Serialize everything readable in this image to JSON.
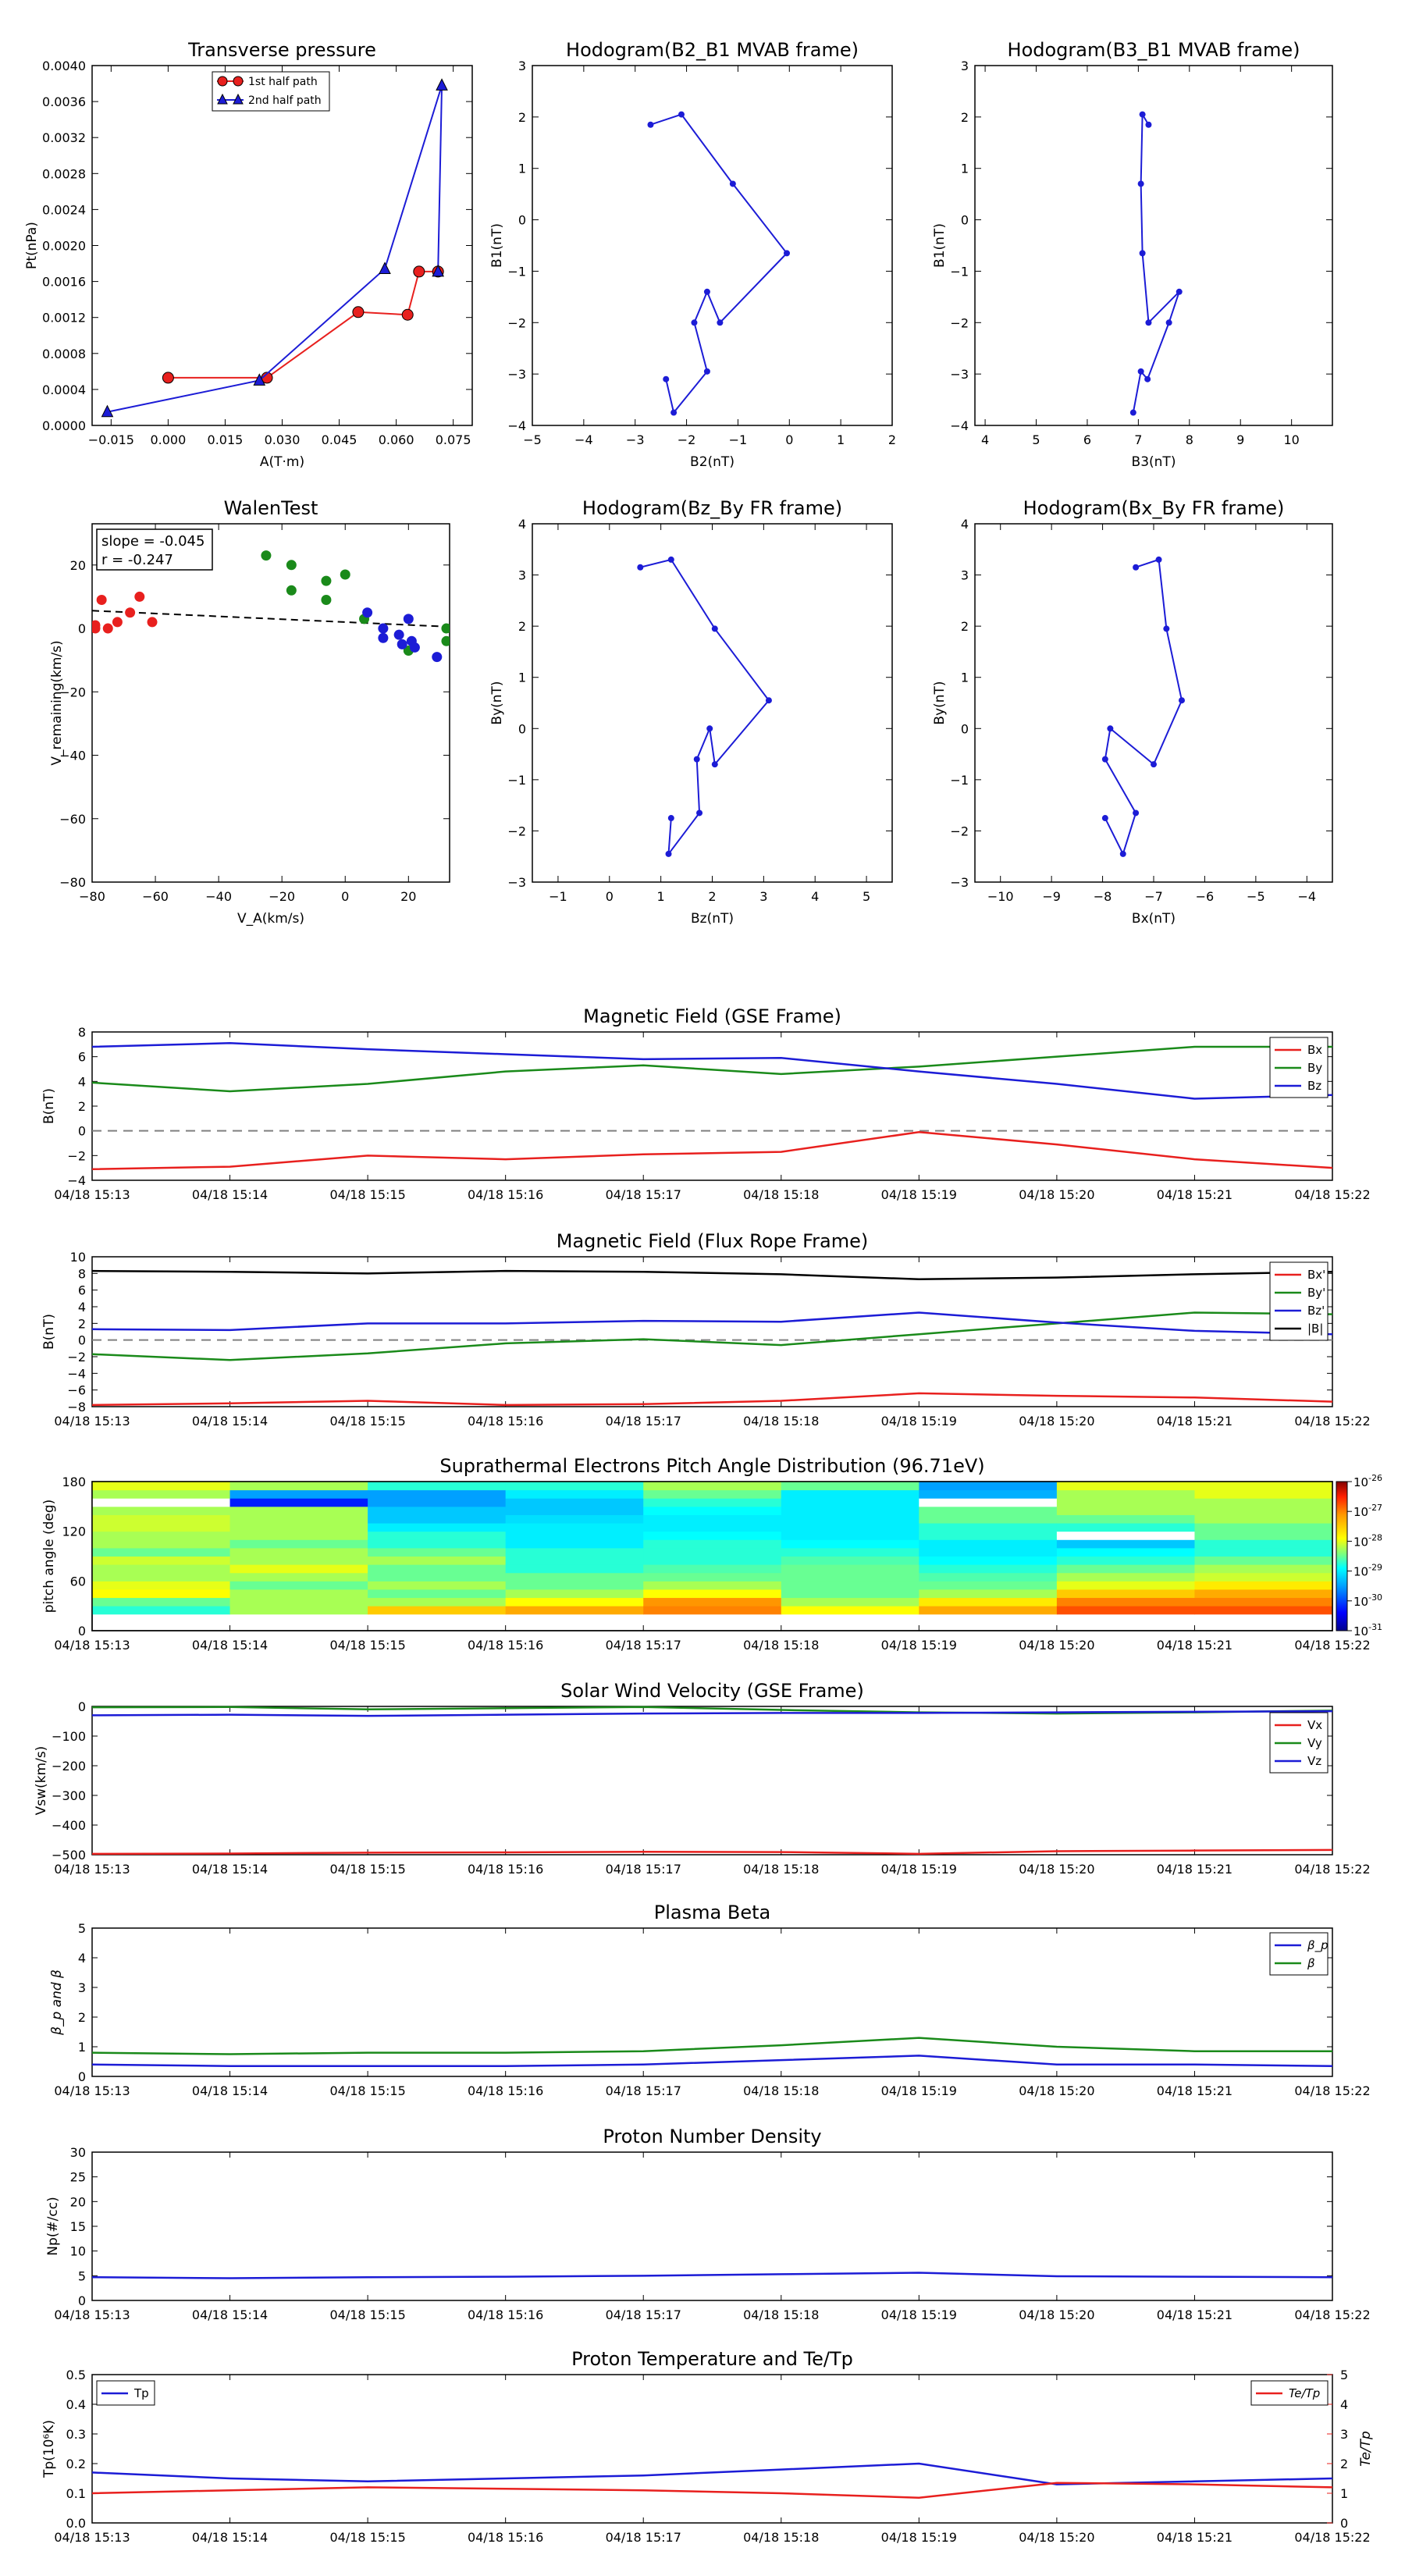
{
  "time_labels": [
    "04/18 15:13",
    "04/18 15:14",
    "04/18 15:15",
    "04/18 15:16",
    "04/18 15:17",
    "04/18 15:18",
    "04/18 15:19",
    "04/18 15:20",
    "04/18 15:21",
    "04/18 15:22"
  ],
  "colors": {
    "red": "#e8201e",
    "green": "#1a8a1a",
    "blue": "#1c1cd6",
    "black": "#000000",
    "grey": "#808080"
  },
  "chart_data": [
    {
      "type": "line",
      "title": "Transverse pressure",
      "xlabel": "A(T·m)",
      "ylabel": "Pt(nPa)",
      "xlim": [
        -0.02,
        0.08
      ],
      "ylim": [
        0,
        0.004
      ],
      "xticks": [
        "−0.015",
        "0.000",
        "0.015",
        "0.030",
        "0.045",
        "0.060",
        "0.075"
      ],
      "yticks": [
        "0.0000",
        "0.0004",
        "0.0008",
        "0.0012",
        "0.0016",
        "0.0020",
        "0.0024",
        "0.0028",
        "0.0032",
        "0.0036",
        "0.0040"
      ],
      "legend": {
        "placement": "top-center",
        "entries": [
          "1st half path",
          "2nd half path"
        ]
      },
      "series": [
        {
          "name": "1st half path",
          "marker": "circle",
          "x": [
            0.0,
            0.026,
            0.05,
            0.063,
            0.066,
            0.071
          ],
          "y": [
            0.00053,
            0.00053,
            0.00126,
            0.00123,
            0.00171,
            0.00171
          ]
        },
        {
          "name": "2nd half path",
          "marker": "triangle",
          "x": [
            0.071,
            0.072,
            0.057,
            0.024,
            -0.016
          ],
          "y": [
            0.00171,
            0.00378,
            0.00174,
            0.0005,
            0.00015
          ]
        }
      ]
    },
    {
      "type": "line",
      "title": "Hodogram(B2_B1 MVAB frame)",
      "xlabel": "B2(nT)",
      "ylabel": "B1(nT)",
      "xlim": [
        -5,
        2
      ],
      "ylim": [
        -4,
        3
      ],
      "xticks": [
        "−5",
        "−4",
        "−3",
        "−2",
        "−1",
        "0",
        "1",
        "2"
      ],
      "yticks": [
        "−4",
        "−3",
        "−2",
        "−1",
        "0",
        "1",
        "2",
        "3"
      ],
      "x": [
        -2.7,
        -2.1,
        -1.1,
        -0.05,
        -1.35,
        -1.6,
        -1.85,
        -1.6,
        -2.25,
        -2.4
      ],
      "y": [
        1.85,
        2.05,
        0.7,
        -0.65,
        -2.0,
        -1.4,
        -2.0,
        -2.95,
        -3.75,
        -3.1
      ]
    },
    {
      "type": "line",
      "title": "Hodogram(B3_B1 MVAB frame)",
      "xlabel": "B3(nT)",
      "ylabel": "B1(nT)",
      "xlim": [
        3.8,
        10.8
      ],
      "ylim": [
        -4,
        3
      ],
      "xticks": [
        "4",
        "5",
        "6",
        "7",
        "8",
        "9",
        "10"
      ],
      "yticks": [
        "−4",
        "−3",
        "−2",
        "−1",
        "0",
        "1",
        "2",
        "3"
      ],
      "x": [
        7.2,
        7.08,
        7.05,
        7.08,
        7.2,
        7.8,
        7.6,
        7.18,
        7.05,
        6.9
      ],
      "y": [
        1.85,
        2.05,
        0.7,
        -0.65,
        -2.0,
        -1.4,
        -2.0,
        -3.1,
        -2.95,
        -3.75
      ]
    },
    {
      "type": "scatter",
      "title": "WalenTest",
      "xlabel": "V_A(km/s)",
      "ylabel": "V_remaining(km/s)",
      "xlim": [
        -80,
        33
      ],
      "ylim": [
        -80,
        33
      ],
      "xticks": [
        "−80",
        "−60",
        "−40",
        "−20",
        "0",
        "20"
      ],
      "yticks": [
        "−80",
        "−60",
        "−40",
        "−20",
        "0",
        "20"
      ],
      "annotation": [
        "slope = -0.045",
        "r = -0.247"
      ],
      "fit": {
        "slope": -0.045,
        "intercept": 2.0
      },
      "series": [
        {
          "color": "red",
          "x": [
            -79,
            -77,
            -75,
            -72,
            -68,
            -65,
            -61,
            -79
          ],
          "y": [
            0,
            9,
            0,
            2,
            5,
            10,
            2,
            1
          ]
        },
        {
          "color": "green",
          "x": [
            -25,
            -17,
            -17,
            -6,
            -6,
            0,
            6,
            20,
            32,
            32
          ],
          "y": [
            23,
            20,
            12,
            15,
            9,
            17,
            3,
            -7,
            0,
            -4
          ]
        },
        {
          "color": "blue",
          "x": [
            7,
            12,
            12,
            17,
            18,
            20,
            21,
            22,
            29
          ],
          "y": [
            5,
            0,
            -3,
            -2,
            -5,
            3,
            -4,
            -6,
            -9
          ]
        }
      ]
    },
    {
      "type": "line",
      "title": "Hodogram(Bz_By FR frame)",
      "xlabel": "Bz(nT)",
      "ylabel": "By(nT)",
      "xlim": [
        -1.5,
        5.5
      ],
      "ylim": [
        -3,
        4
      ],
      "xticks": [
        "−1",
        "0",
        "1",
        "2",
        "3",
        "4",
        "5"
      ],
      "yticks": [
        "−3",
        "−2",
        "−1",
        "0",
        "1",
        "2",
        "3",
        "4"
      ],
      "x": [
        0.6,
        1.2,
        2.05,
        3.1,
        2.05,
        1.95,
        1.7,
        1.75,
        1.15,
        1.2
      ],
      "y": [
        3.15,
        3.3,
        1.95,
        0.55,
        -0.7,
        0.0,
        -0.6,
        -1.65,
        -2.45,
        -1.75
      ]
    },
    {
      "type": "line",
      "title": "Hodogram(Bx_By FR frame)",
      "xlabel": "Bx(nT)",
      "ylabel": "By(nT)",
      "xlim": [
        -10.5,
        -3.5
      ],
      "ylim": [
        -3,
        4
      ],
      "xticks": [
        "−10",
        "−9",
        "−8",
        "−7",
        "−6",
        "−5",
        "−4"
      ],
      "yticks": [
        "−3",
        "−2",
        "−1",
        "0",
        "1",
        "2",
        "3",
        "4"
      ],
      "x": [
        -7.35,
        -6.9,
        -6.75,
        -6.45,
        -7.0,
        -7.85,
        -7.95,
        -7.35,
        -7.6,
        -7.95
      ],
      "y": [
        3.15,
        3.3,
        1.95,
        0.55,
        -0.7,
        0.0,
        -0.6,
        -1.65,
        -2.45,
        -1.75
      ]
    },
    {
      "type": "line",
      "title": "Magnetic Field (GSE Frame)",
      "ylabel": "B(nT)",
      "ylim": [
        -4,
        8
      ],
      "yticks": [
        "−4",
        "−2",
        "0",
        "2",
        "4",
        "6",
        "8"
      ],
      "zero_line": true,
      "legend": {
        "placement": "top-right"
      },
      "series": [
        {
          "name": "Bx",
          "color": "red",
          "values": [
            -3.1,
            -2.9,
            -2.0,
            -2.3,
            -1.9,
            -1.7,
            -0.1,
            -1.1,
            -2.3,
            -3.0
          ]
        },
        {
          "name": "By",
          "color": "green",
          "values": [
            3.9,
            3.2,
            3.8,
            4.8,
            5.3,
            4.6,
            5.2,
            6.0,
            6.8,
            6.8
          ]
        },
        {
          "name": "Bz",
          "color": "blue",
          "values": [
            6.8,
            7.1,
            6.6,
            6.2,
            5.8,
            5.9,
            4.8,
            3.8,
            2.6,
            2.9
          ]
        }
      ]
    },
    {
      "type": "line",
      "title": "Magnetic Field (Flux Rope Frame)",
      "ylabel": "B(nT)",
      "ylim": [
        -8,
        10
      ],
      "yticks": [
        "−8",
        "−6",
        "−4",
        "−2",
        "0",
        "2",
        "4",
        "6",
        "8",
        "10"
      ],
      "zero_line": true,
      "legend": {
        "placement": "top-right"
      },
      "series": [
        {
          "name": "Bx'",
          "color": "red",
          "values": [
            -7.8,
            -7.6,
            -7.3,
            -7.8,
            -7.7,
            -7.3,
            -6.4,
            -6.7,
            -6.9,
            -7.4
          ]
        },
        {
          "name": "By'",
          "color": "green",
          "values": [
            -1.7,
            -2.4,
            -1.6,
            -0.4,
            0.1,
            -0.6,
            0.7,
            2.0,
            3.3,
            3.1
          ]
        },
        {
          "name": "Bz'",
          "color": "blue",
          "values": [
            1.3,
            1.2,
            2.0,
            2.0,
            2.3,
            2.2,
            3.3,
            2.1,
            1.1,
            0.7
          ]
        },
        {
          "name": "|B|",
          "color": "black",
          "values": [
            8.3,
            8.2,
            8.0,
            8.3,
            8.2,
            7.9,
            7.3,
            7.5,
            7.9,
            8.2
          ]
        }
      ]
    },
    {
      "type": "heatmap",
      "title": "Suprathermal Electrons Pitch Angle Distribution (96.71eV)",
      "ylabel": "pitch angle (deg)",
      "ylim": [
        0,
        180
      ],
      "yticks": [
        "0",
        "60",
        "120",
        "180"
      ],
      "colorbar": {
        "ticks": [
          "10",
          "10",
          "10",
          "10",
          "10",
          "10"
        ],
        "exponents": [
          "-26",
          "-27",
          "-28",
          "-29",
          "-30",
          "-31"
        ]
      },
      "bins": [
        20,
        30,
        40,
        50,
        60,
        70,
        80,
        90,
        100,
        110,
        120,
        130,
        140,
        150,
        160,
        170,
        180
      ],
      "levels": [
        [
          0.45,
          0.5,
          0.62,
          0.6,
          0.55,
          0.55,
          0.58,
          0.5,
          0.55,
          0.55,
          0.58,
          0.58,
          0.55,
          1.0,
          0.55,
          0.6
        ],
        [
          0.55,
          0.55,
          0.55,
          0.5,
          0.55,
          0.6,
          0.55,
          0.55,
          0.5,
          0.55,
          0.55,
          0.55,
          0.55,
          0.15,
          0.3,
          0.55
        ],
        [
          0.7,
          0.55,
          0.5,
          0.55,
          0.5,
          0.5,
          0.55,
          0.5,
          0.45,
          0.45,
          0.4,
          0.35,
          0.35,
          0.3,
          0.3,
          0.45
        ],
        [
          0.75,
          0.62,
          0.55,
          0.5,
          0.5,
          0.45,
          0.45,
          0.45,
          0.4,
          0.4,
          0.4,
          0.38,
          0.35,
          0.35,
          0.4,
          0.45
        ],
        [
          0.8,
          0.78,
          0.62,
          0.55,
          0.5,
          0.48,
          0.45,
          0.45,
          0.45,
          0.42,
          0.4,
          0.4,
          0.42,
          0.45,
          0.5,
          0.55
        ],
        [
          0.62,
          0.55,
          0.5,
          0.5,
          0.5,
          0.5,
          0.48,
          0.45,
          0.42,
          0.4,
          0.4,
          0.4,
          0.4,
          0.4,
          0.4,
          0.5
        ],
        [
          0.75,
          0.65,
          0.55,
          0.5,
          0.48,
          0.45,
          0.42,
          0.4,
          0.4,
          0.45,
          0.45,
          0.5,
          0.5,
          1.0,
          0.32,
          0.3
        ],
        [
          0.85,
          0.8,
          0.7,
          0.6,
          0.55,
          0.5,
          0.45,
          0.42,
          0.35,
          1.0,
          0.45,
          0.5,
          0.55,
          0.55,
          0.55,
          0.6
        ],
        [
          0.85,
          0.8,
          0.75,
          0.65,
          0.58,
          0.55,
          0.5,
          0.45,
          0.45,
          0.5,
          0.5,
          0.55,
          0.55,
          0.55,
          0.6,
          0.6
        ]
      ]
    },
    {
      "type": "line",
      "title": "Solar Wind Velocity (GSE Frame)",
      "ylabel": "Vsw(km/s)",
      "ylim": [
        -500,
        0
      ],
      "yticks": [
        "−500",
        "−400",
        "−300",
        "−200",
        "−100",
        "0"
      ],
      "legend": {
        "placement": "top-right"
      },
      "series": [
        {
          "name": "Vx",
          "color": "red",
          "values": [
            -497,
            -496,
            -493,
            -492,
            -490,
            -491,
            -497,
            -488,
            -486,
            -484
          ]
        },
        {
          "name": "Vy",
          "color": "green",
          "values": [
            -3,
            -2,
            -10,
            -6,
            -2,
            -12,
            -20,
            -24,
            -20,
            -14
          ]
        },
        {
          "name": "Vz",
          "color": "blue",
          "values": [
            -30,
            -28,
            -32,
            -28,
            -24,
            -22,
            -22,
            -20,
            -18,
            -16
          ]
        }
      ]
    },
    {
      "type": "line",
      "title": "Plasma Beta",
      "ylabel": "β_p and β",
      "ylim": [
        0,
        5
      ],
      "yticks": [
        "0",
        "1",
        "2",
        "3",
        "4",
        "5"
      ],
      "legend": {
        "placement": "top-right"
      },
      "series": [
        {
          "name": "β_p",
          "color": "blue",
          "values": [
            0.4,
            0.35,
            0.35,
            0.35,
            0.4,
            0.55,
            0.7,
            0.4,
            0.4,
            0.35
          ]
        },
        {
          "name": "β",
          "color": "green",
          "values": [
            0.8,
            0.75,
            0.8,
            0.8,
            0.85,
            1.05,
            1.3,
            1.0,
            0.85,
            0.85
          ]
        }
      ]
    },
    {
      "type": "line",
      "title": "Proton Number Density",
      "ylabel": "Np(#/cc)",
      "ylim": [
        0,
        30
      ],
      "yticks": [
        "0",
        "5",
        "10",
        "15",
        "20",
        "25",
        "30"
      ],
      "series": [
        {
          "color": "blue",
          "values": [
            4.7,
            4.5,
            4.7,
            4.8,
            5.0,
            5.3,
            5.6,
            4.9,
            4.8,
            4.7
          ]
        }
      ]
    },
    {
      "type": "line",
      "title": "Proton Temperature and Te/Tp",
      "ylabel": "Tp(10⁶K)",
      "ylabel_right": "Te/Tp",
      "ylim": [
        0,
        0.5
      ],
      "ylim_right": [
        0,
        5
      ],
      "yticks": [
        "0.0",
        "0.1",
        "0.2",
        "0.3",
        "0.4",
        "0.5"
      ],
      "yticks_right": [
        "0",
        "1",
        "2",
        "3",
        "4",
        "5"
      ],
      "series": [
        {
          "name": "Tp",
          "color": "blue",
          "axis": "left",
          "values": [
            0.17,
            0.15,
            0.14,
            0.15,
            0.16,
            0.18,
            0.2,
            0.13,
            0.14,
            0.15
          ]
        },
        {
          "name": "Te/Tp",
          "color": "red",
          "axis": "right",
          "values": [
            1.0,
            1.1,
            1.2,
            1.15,
            1.1,
            1.0,
            0.85,
            1.35,
            1.3,
            1.2
          ]
        }
      ]
    }
  ]
}
